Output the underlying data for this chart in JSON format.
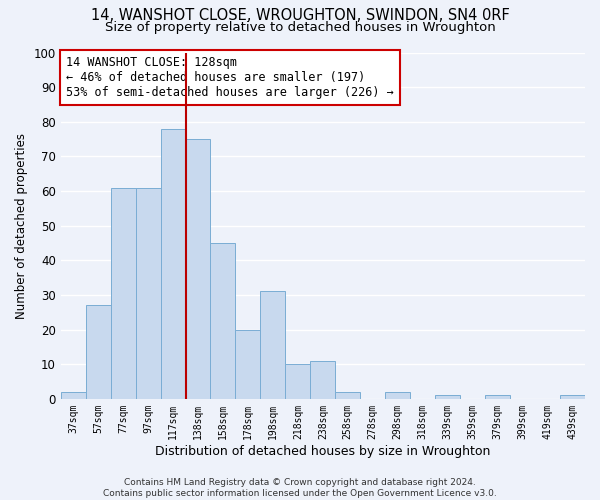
{
  "title": "14, WANSHOT CLOSE, WROUGHTON, SWINDON, SN4 0RF",
  "subtitle": "Size of property relative to detached houses in Wroughton",
  "xlabel": "Distribution of detached houses by size in Wroughton",
  "ylabel": "Number of detached properties",
  "bar_labels": [
    "37sqm",
    "57sqm",
    "77sqm",
    "97sqm",
    "117sqm",
    "138sqm",
    "158sqm",
    "178sqm",
    "198sqm",
    "218sqm",
    "238sqm",
    "258sqm",
    "278sqm",
    "298sqm",
    "318sqm",
    "339sqm",
    "359sqm",
    "379sqm",
    "399sqm",
    "419sqm",
    "439sqm"
  ],
  "bar_values": [
    2,
    27,
    61,
    61,
    78,
    75,
    45,
    20,
    31,
    10,
    11,
    2,
    0,
    2,
    0,
    1,
    0,
    1,
    0,
    0,
    1
  ],
  "bar_color": "#c8d9ee",
  "bar_edge_color": "#7aadd4",
  "background_color": "#eef2fa",
  "ylim": [
    0,
    100
  ],
  "vline_x": 4.5,
  "vline_color": "#bb0000",
  "annotation_text": "14 WANSHOT CLOSE: 128sqm\n← 46% of detached houses are smaller (197)\n53% of semi-detached houses are larger (226) →",
  "annotation_box_color": "#ffffff",
  "annotation_box_edge": "#cc0000",
  "footer_line1": "Contains HM Land Registry data © Crown copyright and database right 2024.",
  "footer_line2": "Contains public sector information licensed under the Open Government Licence v3.0.",
  "grid_color": "#ffffff",
  "title_fontsize": 10.5,
  "subtitle_fontsize": 9.5,
  "annotation_fontsize": 8.5
}
